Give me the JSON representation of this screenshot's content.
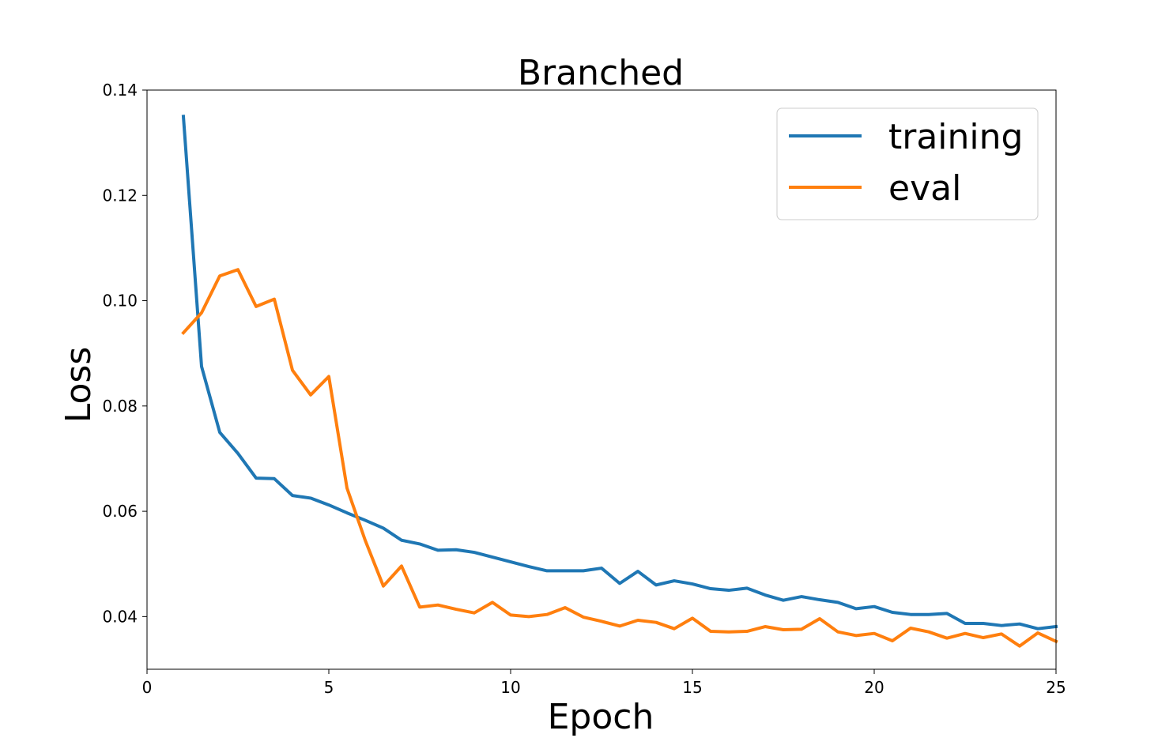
{
  "chart_data": {
    "type": "line",
    "title": "Branched",
    "xlabel": "Epoch",
    "ylabel": "Loss",
    "xlim": [
      0,
      25
    ],
    "ylim": [
      0.03,
      0.14
    ],
    "xticks": [
      "0",
      "5",
      "10",
      "15",
      "20",
      "25"
    ],
    "yticks": [
      "0.04",
      "0.06",
      "0.08",
      "0.10",
      "0.12",
      "0.14"
    ],
    "grid": false,
    "legend_position": "top-right",
    "x": [
      1.0,
      1.5,
      2.0,
      2.5,
      3.0,
      3.5,
      4.0,
      4.5,
      5.0,
      5.5,
      6.0,
      6.5,
      7.0,
      7.5,
      8.0,
      8.5,
      9.0,
      9.5,
      10.0,
      10.5,
      11.0,
      11.5,
      12.0,
      12.5,
      13.0,
      13.5,
      14.0,
      14.5,
      15.0,
      15.5,
      16.0,
      16.5,
      17.0,
      17.5,
      18.0,
      18.5,
      19.0,
      19.5,
      20.0,
      20.5,
      21.0,
      21.5,
      22.0,
      22.5,
      23.0,
      23.5,
      24.0,
      24.5,
      25.0
    ],
    "series": [
      {
        "name": "training",
        "color": "#1f77b4",
        "values": [
          0.135,
          0.0875,
          0.075,
          0.071,
          0.0663,
          0.0662,
          0.063,
          0.0625,
          0.0612,
          0.0597,
          0.0583,
          0.0568,
          0.0545,
          0.0538,
          0.0526,
          0.0527,
          0.0522,
          0.0513,
          0.0504,
          0.0495,
          0.0487,
          0.0487,
          0.0487,
          0.0492,
          0.0463,
          0.0486,
          0.046,
          0.0468,
          0.0462,
          0.0453,
          0.045,
          0.0454,
          0.0441,
          0.0431,
          0.0438,
          0.0432,
          0.0427,
          0.0415,
          0.0419,
          0.0408,
          0.0404,
          0.0404,
          0.0406,
          0.0387,
          0.0387,
          0.0383,
          0.0386,
          0.0377,
          0.0381
        ]
      },
      {
        "name": "eval",
        "color": "#ff7f0e",
        "values": [
          0.0939,
          0.0977,
          0.1047,
          0.1059,
          0.0989,
          0.1003,
          0.0868,
          0.0821,
          0.0856,
          0.0644,
          0.0545,
          0.0458,
          0.0496,
          0.0418,
          0.0422,
          0.0414,
          0.0407,
          0.0427,
          0.0403,
          0.04,
          0.0404,
          0.0417,
          0.0399,
          0.0391,
          0.0382,
          0.0393,
          0.0389,
          0.0377,
          0.0397,
          0.0372,
          0.0371,
          0.0372,
          0.0381,
          0.0375,
          0.0376,
          0.0396,
          0.0371,
          0.0364,
          0.0368,
          0.0354,
          0.0378,
          0.0371,
          0.0359,
          0.0368,
          0.036,
          0.0367,
          0.0344,
          0.0369,
          0.0353
        ]
      }
    ]
  }
}
